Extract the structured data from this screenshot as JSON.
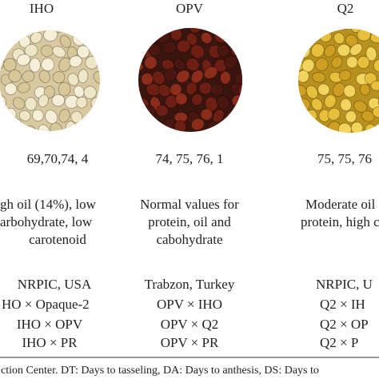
{
  "table": {
    "header": [
      "IHO",
      "OPV",
      "Q2"
    ],
    "rows": [
      [
        "69,70,74, 4",
        "74, 75, 76, 1",
        "75, 75, 76"
      ],
      [
        "gh oil (14%), low",
        "Normal values for",
        "Moderate oil"
      ],
      [
        "arbohydrate, low",
        "protein, oil and",
        "protein, high car"
      ],
      [
        "carotenoid",
        "cabohydrate",
        ""
      ],
      [
        "NRPIC, USA",
        "Trabzon, Turkey",
        "NRPIC, U"
      ],
      [
        "HO × Opaque-2",
        "OPV × IHO",
        "Q2 × IH"
      ],
      [
        "IHO × OPV",
        "OPV × Q2",
        "Q2 × OP"
      ],
      [
        "IHO × PR",
        "OPV × PR",
        "Q2 × P"
      ]
    ],
    "footnote": "ction Center. DT: Days to tasseling, DA: Days to anthesis, DS: Days to"
  }
}
